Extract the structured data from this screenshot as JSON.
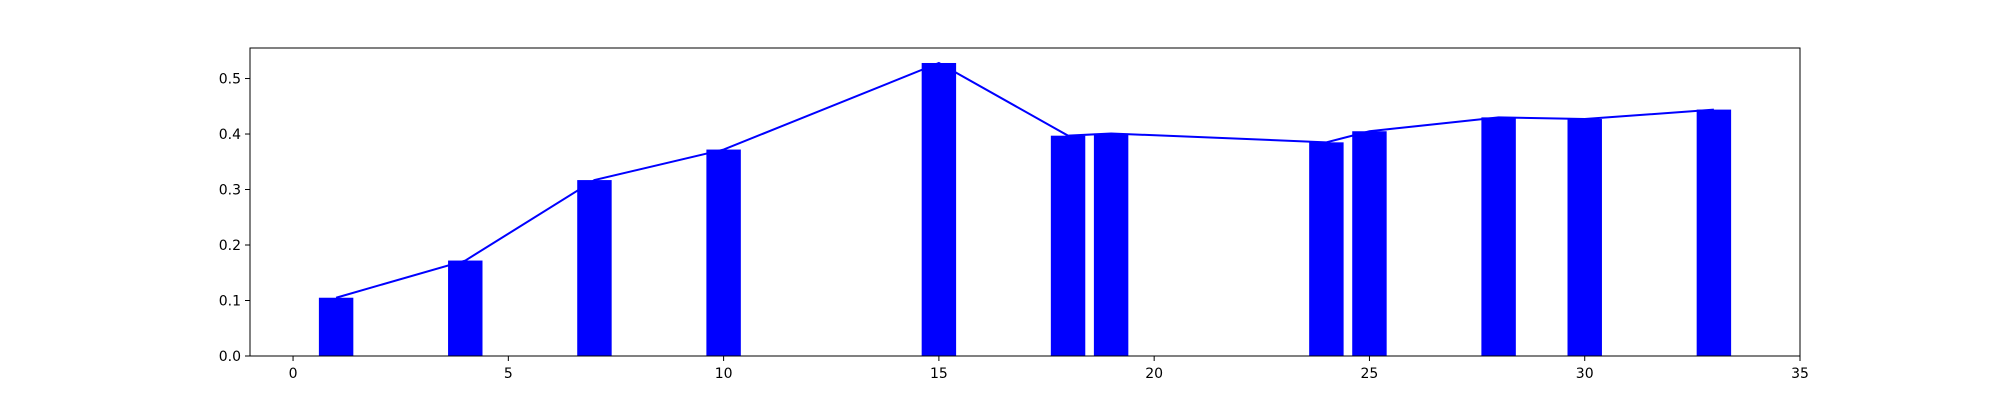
{
  "chart_data": {
    "type": "bar",
    "title": "",
    "xlabel": "",
    "ylabel": "",
    "xlim": [
      -1,
      35
    ],
    "ylim": [
      0,
      0.555
    ],
    "xticks": [
      0,
      5,
      10,
      15,
      20,
      25,
      30,
      35
    ],
    "yticks": [
      0.0,
      0.1,
      0.2,
      0.3,
      0.4,
      0.5
    ],
    "xtick_labels": [
      "0",
      "5",
      "10",
      "15",
      "20",
      "25",
      "30",
      "35"
    ],
    "ytick_labels": [
      "0.0",
      "0.1",
      "0.2",
      "0.3",
      "0.4",
      "0.5"
    ],
    "bar_width": 0.8,
    "grid": false,
    "legend": "none",
    "colors": {
      "bars": "#0000ff",
      "line": "#0000ff",
      "axes": "#000000"
    },
    "series": [
      {
        "type": "bar",
        "x": [
          1,
          4,
          7,
          10,
          15,
          18,
          19,
          24,
          25,
          28,
          30,
          33
        ],
        "values": [
          0.105,
          0.172,
          0.317,
          0.372,
          0.528,
          0.397,
          0.401,
          0.385,
          0.405,
          0.43,
          0.427,
          0.444
        ]
      },
      {
        "type": "line",
        "x": [
          1,
          4,
          7,
          10,
          15,
          18,
          19,
          24,
          25,
          28,
          30,
          33
        ],
        "values": [
          0.105,
          0.172,
          0.317,
          0.372,
          0.528,
          0.397,
          0.401,
          0.385,
          0.405,
          0.43,
          0.427,
          0.444
        ]
      }
    ]
  }
}
